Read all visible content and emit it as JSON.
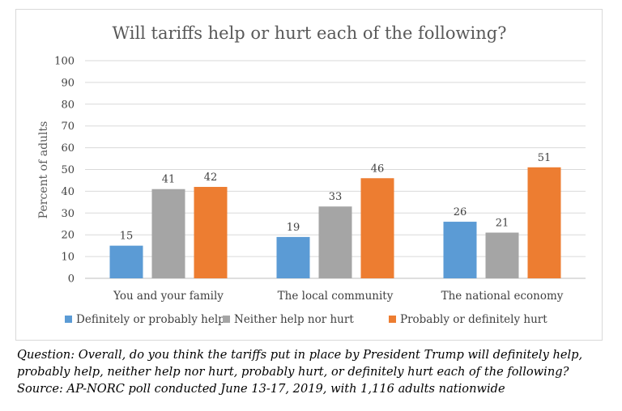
{
  "chart_data": {
    "type": "bar",
    "title": "Will tariffs help or hurt each of the following?",
    "ylabel": "Percent of adults",
    "xlabel": "",
    "ylim": [
      0,
      100
    ],
    "yticks": [
      0,
      10,
      20,
      30,
      40,
      50,
      60,
      70,
      80,
      90,
      100
    ],
    "grid": true,
    "legend_position": "bottom",
    "categories": [
      "You and your family",
      "The local community",
      "The national economy"
    ],
    "series": [
      {
        "name": "Definitely or probably help",
        "color": "#5b9bd5",
        "values": [
          15,
          19,
          26
        ]
      },
      {
        "name": "Neither help nor hurt",
        "color": "#a5a5a5",
        "values": [
          41,
          33,
          21
        ]
      },
      {
        "name": "Probably or definitely hurt",
        "color": "#ed7d31",
        "values": [
          42,
          46,
          51
        ]
      }
    ]
  },
  "note": {
    "question_line1": "Question: Overall, do you think the tariffs put in place by President Trump will definitely help,",
    "question_line2": "probably help, neither help nor hurt, probably hurt, or definitely hurt each of the following?",
    "source": "Source: AP-NORC poll conducted June 13-17, 2019, with 1,116 adults nationwide"
  }
}
